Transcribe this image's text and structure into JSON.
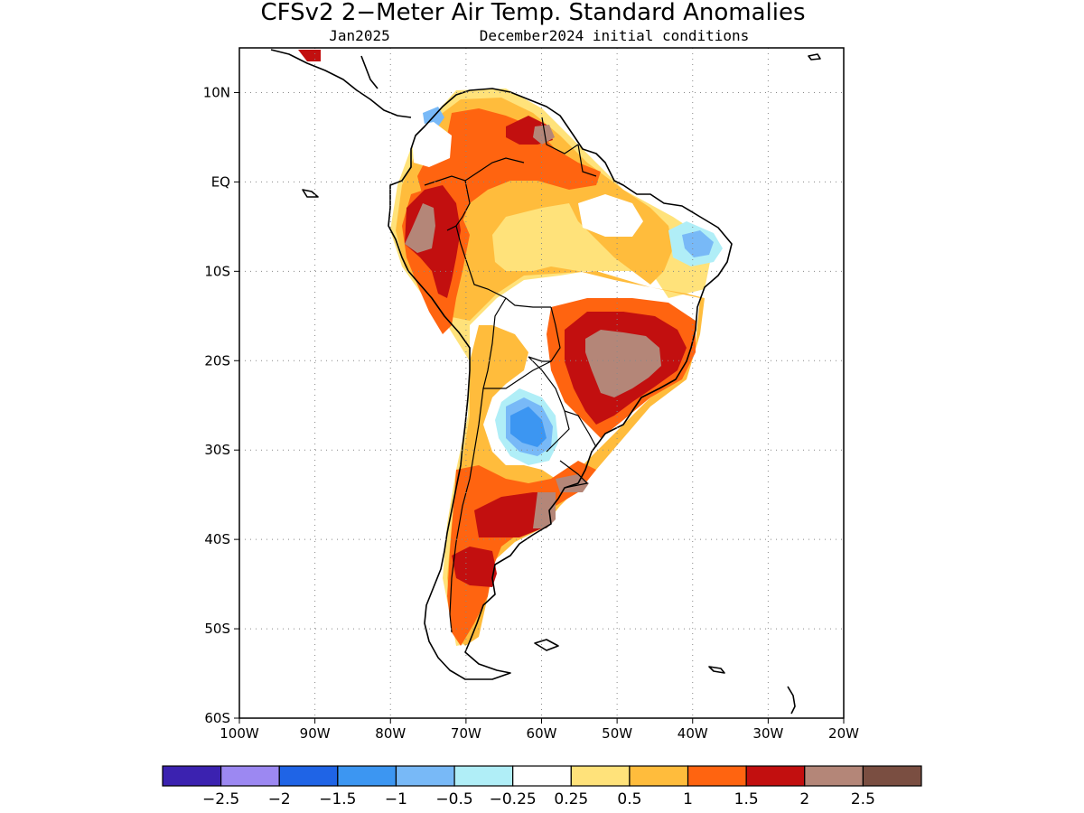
{
  "title": "CFSv2 2−Meter Air Temp. Standard Anomalies",
  "subtitle_left": "Jan2025",
  "subtitle_right": "December2024 initial conditions",
  "map": {
    "lon_range": [
      -100,
      -20
    ],
    "lat_range": [
      -60,
      15
    ],
    "lat_ticks": [
      {
        "value": 10,
        "label": "10N"
      },
      {
        "value": 0,
        "label": "EQ"
      },
      {
        "value": -10,
        "label": "10S"
      },
      {
        "value": -20,
        "label": "20S"
      },
      {
        "value": -30,
        "label": "30S"
      },
      {
        "value": -40,
        "label": "40S"
      },
      {
        "value": -50,
        "label": "50S"
      },
      {
        "value": -60,
        "label": "60S"
      }
    ],
    "lon_ticks": [
      {
        "value": -100,
        "label": "100W"
      },
      {
        "value": -90,
        "label": "90W"
      },
      {
        "value": -80,
        "label": "80W"
      },
      {
        "value": -70,
        "label": "70W"
      },
      {
        "value": -60,
        "label": "60W"
      },
      {
        "value": -50,
        "label": "50W"
      },
      {
        "value": -40,
        "label": "40W"
      },
      {
        "value": -30,
        "label": "30W"
      },
      {
        "value": -20,
        "label": "20W"
      }
    ],
    "grid": true
  },
  "colorbar": {
    "colors": [
      "#3b22b0",
      "#9c88f2",
      "#1f64e6",
      "#3c96f2",
      "#78b9f7",
      "#b0eef7",
      "#ffffff",
      "#ffe27a",
      "#ffbc3c",
      "#ff6410",
      "#c20f0f",
      "#b48678",
      "#7a4e41"
    ],
    "labels": [
      "−2.5",
      "−2",
      "−1.5",
      "−1",
      "−0.5",
      "−0.25",
      "0.25",
      "0.5",
      "1",
      "1.5",
      "2",
      "2.5"
    ]
  },
  "anomaly_regions": [
    {
      "level": "0.25 to 0.5",
      "color": "#ffe27a"
    },
    {
      "level": "0.5 to 1",
      "color": "#ffbc3c"
    },
    {
      "level": "1 to 1.5",
      "color": "#ff6410"
    },
    {
      "level": "1.5 to 2",
      "color": "#c20f0f"
    },
    {
      "level": "2 to 2.5",
      "color": "#b48678"
    },
    {
      "level": "-0.5 to -0.25",
      "color": "#b0eef7"
    },
    {
      "level": "-1 to -0.5",
      "color": "#78b9f7"
    },
    {
      "level": "-1.5 to -1",
      "color": "#3c96f2"
    }
  ]
}
